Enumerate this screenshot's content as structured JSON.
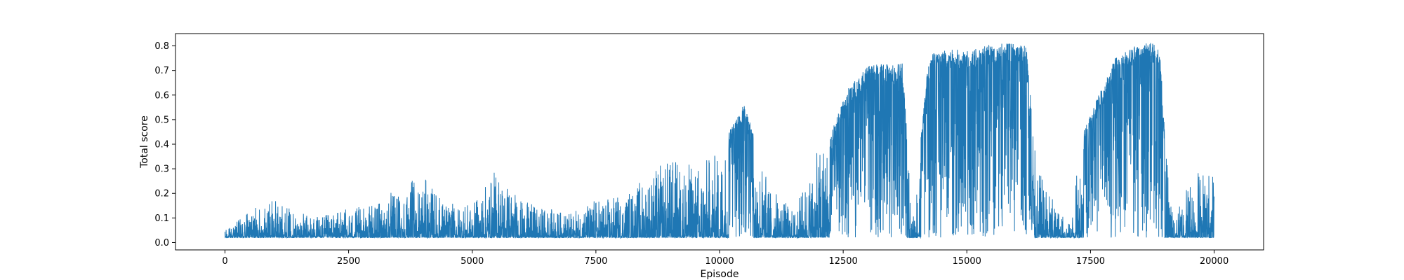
{
  "chart_data": {
    "type": "line",
    "title": "",
    "xlabel": "Episode",
    "ylabel": "Total score",
    "xlim": [
      -1000,
      21000
    ],
    "ylim": [
      -0.03,
      0.85
    ],
    "x_ticks": [
      0,
      2500,
      5000,
      7500,
      10000,
      12500,
      15000,
      17500,
      20000
    ],
    "x_tick_labels": [
      "0",
      "2500",
      "5000",
      "7500",
      "10000",
      "12500",
      "15000",
      "17500",
      "20000"
    ],
    "y_ticks": [
      0.0,
      0.1,
      0.2,
      0.3,
      0.4,
      0.5,
      0.6,
      0.7,
      0.8
    ],
    "y_tick_labels": [
      "0.0",
      "0.1",
      "0.2",
      "0.3",
      "0.4",
      "0.5",
      "0.6",
      "0.7",
      "0.8"
    ],
    "grid": false,
    "series": [
      {
        "color": "#1f77b4",
        "x_start": 0,
        "x_end": 20000,
        "envelope": {
          "episode": [
            0,
            500,
            1000,
            1500,
            2000,
            2500,
            3000,
            3500,
            4000,
            4500,
            5000,
            5500,
            6000,
            6500,
            7000,
            7500,
            8000,
            8500,
            9000,
            9500,
            10000,
            10500,
            11000,
            11500,
            12000,
            12300,
            12600,
            13000,
            13300,
            13700,
            13900,
            14200,
            14300,
            14600,
            15000,
            15400,
            15700,
            16000,
            16200,
            16400,
            16800,
            17100,
            17300,
            17600,
            17800,
            18000,
            18300,
            18600,
            18900,
            19000,
            19200,
            19400,
            19600,
            19800,
            20000
          ],
          "max_score": [
            0.05,
            0.13,
            0.18,
            0.12,
            0.11,
            0.14,
            0.15,
            0.23,
            0.27,
            0.16,
            0.15,
            0.31,
            0.17,
            0.14,
            0.12,
            0.18,
            0.19,
            0.27,
            0.35,
            0.32,
            0.38,
            0.57,
            0.24,
            0.13,
            0.38,
            0.47,
            0.63,
            0.72,
            0.73,
            0.73,
            0.08,
            0.7,
            0.77,
            0.79,
            0.78,
            0.8,
            0.81,
            0.81,
            0.8,
            0.32,
            0.15,
            0.07,
            0.42,
            0.57,
            0.66,
            0.75,
            0.79,
            0.82,
            0.8,
            0.45,
            0.08,
            0.24,
            0.33,
            0.32,
            0.31
          ],
          "typical_low": [
            0.02,
            0.02,
            0.02,
            0.02,
            0.02,
            0.02,
            0.02,
            0.02,
            0.02,
            0.02,
            0.02,
            0.02,
            0.02,
            0.02,
            0.02,
            0.02,
            0.02,
            0.02,
            0.02,
            0.02,
            0.02,
            0.02,
            0.02,
            0.02,
            0.02,
            0.02,
            0.02,
            0.02,
            0.02,
            0.02,
            0.02,
            0.02,
            0.02,
            0.02,
            0.02,
            0.02,
            0.02,
            0.02,
            0.02,
            0.02,
            0.02,
            0.02,
            0.02,
            0.02,
            0.02,
            0.02,
            0.02,
            0.02,
            0.02,
            0.02,
            0.02,
            0.02,
            0.02,
            0.02,
            0.02
          ]
        }
      }
    ]
  }
}
